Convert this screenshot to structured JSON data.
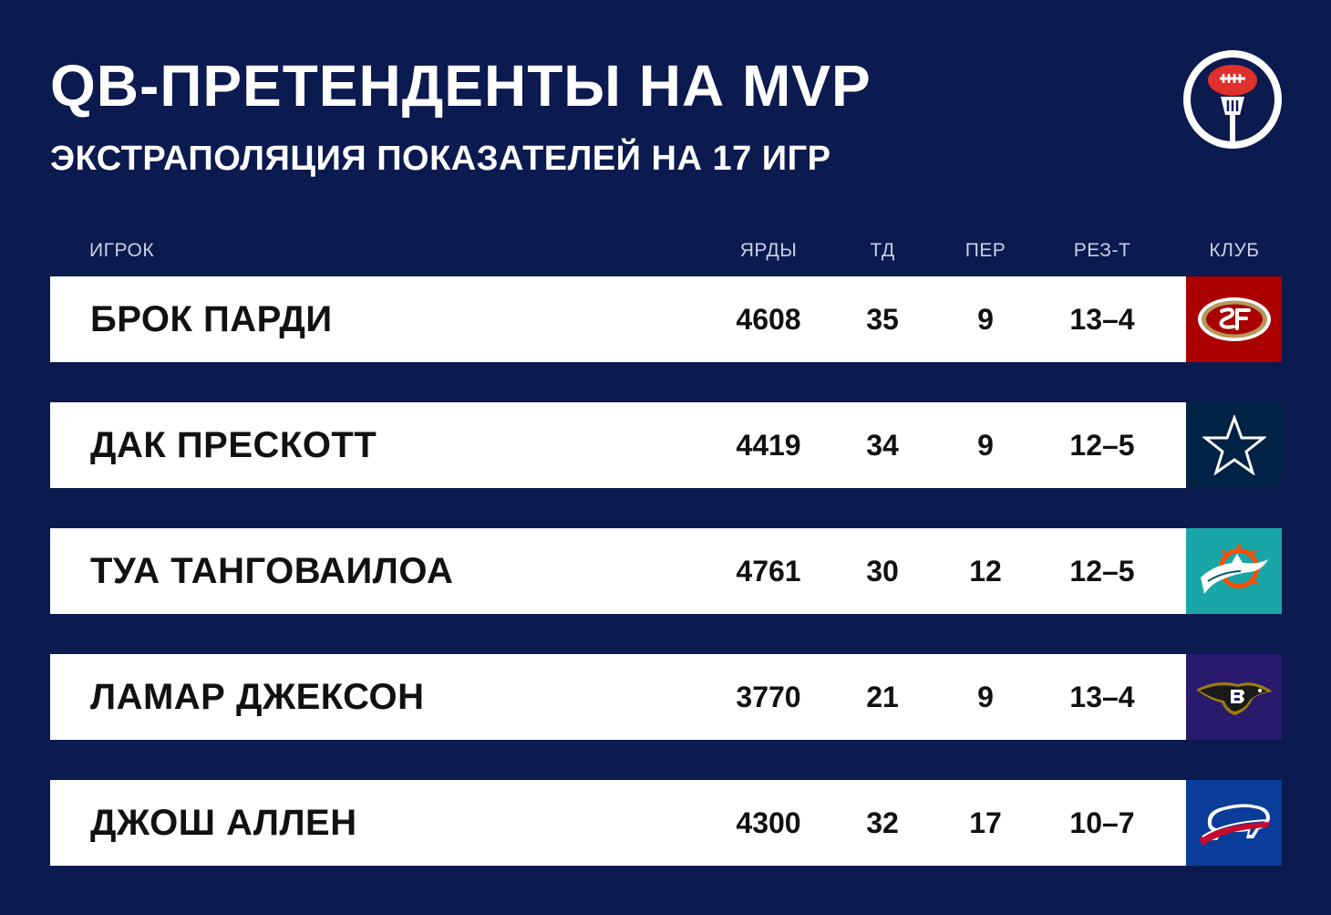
{
  "header": {
    "title": "QB-ПРЕТЕНДЕНТЫ НА MVP",
    "subtitle": "ЭКСТРАПОЛЯЦИЯ ПОКАЗАТЕЛЕЙ НА 17 ИГР",
    "logo_icon": "football-microphone-icon"
  },
  "columns": {
    "player": "ИГРОК",
    "yards": "ЯРДЫ",
    "td": "ТД",
    "int": "ПЕР",
    "record": "РЕЗ-Т",
    "club": "КЛУБ"
  },
  "rows": [
    {
      "player": "БРОК ПАРДИ",
      "yards": "4608",
      "td": "35",
      "int": "9",
      "record": "13–4",
      "club_icon": "49ers-logo-icon",
      "club_color": "#aa0000"
    },
    {
      "player": "ДАК ПРЕСКОТТ",
      "yards": "4419",
      "td": "34",
      "int": "9",
      "record": "12–5",
      "club_icon": "cowboys-star-icon",
      "club_color": "#002244"
    },
    {
      "player": "ТУА ТАНГОВАИЛОА",
      "yards": "4761",
      "td": "30",
      "int": "12",
      "record": "12–5",
      "club_icon": "dolphins-logo-icon",
      "club_color": "#1aa6a6"
    },
    {
      "player": "ЛАМАР ДЖЕКСОН",
      "yards": "3770",
      "td": "21",
      "int": "9",
      "record": "13–4",
      "club_icon": "ravens-logo-icon",
      "club_color": "#2a1a6e"
    },
    {
      "player": "ДЖОШ АЛЛЕН",
      "yards": "4300",
      "td": "32",
      "int": "17",
      "record": "10–7",
      "club_icon": "bills-logo-icon",
      "club_color": "#0a3d99"
    }
  ],
  "colors": {
    "background": "#0b1a4f",
    "row_background": "#ffffff",
    "header_text": "#c9d0e6"
  }
}
